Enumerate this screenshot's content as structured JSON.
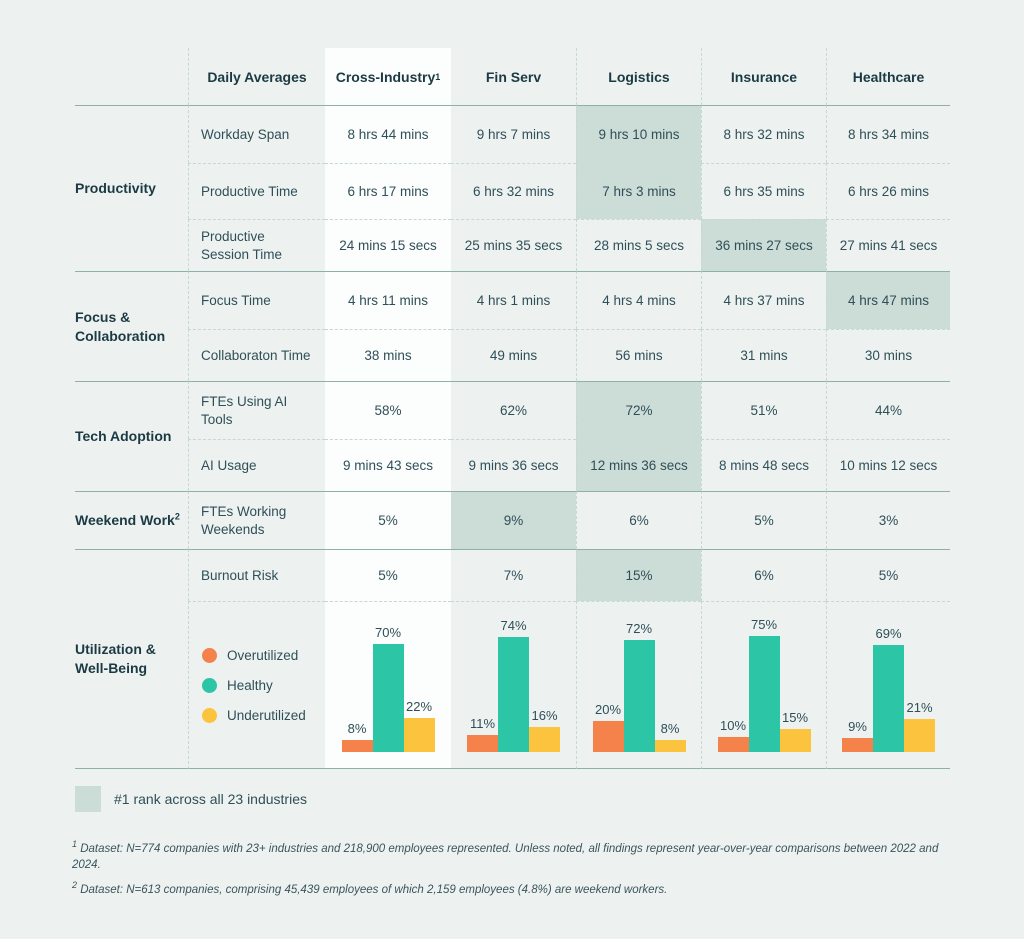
{
  "table": {
    "header": {
      "daily_averages_label": "Daily Averages",
      "columns": [
        {
          "label": "Cross-Industry",
          "superscript": "1"
        },
        {
          "label": "Fin Serv"
        },
        {
          "label": "Logistics"
        },
        {
          "label": "Insurance"
        },
        {
          "label": "Healthcare"
        }
      ]
    },
    "sections": [
      {
        "label": "Productivity",
        "rows": [
          {
            "label": "Workday Span",
            "values": [
              "8 hrs 44 mins",
              "9 hrs 7 mins",
              "9 hrs 10 mins",
              "8 hrs 32 mins",
              "8 hrs 34 mins"
            ]
          },
          {
            "label": "Productive Time",
            "values": [
              "6 hrs 17 mins",
              "6 hrs 32 mins",
              "7 hrs 3 mins",
              "6 hrs 35 mins",
              "6 hrs 26 mins"
            ]
          },
          {
            "label": "Productive Session Time",
            "values": [
              "24 mins 15 secs",
              "25 mins 35 secs",
              "28 mins 5 secs",
              "36 mins 27 secs",
              "27 mins 41 secs"
            ]
          }
        ]
      },
      {
        "label": "Focus & Collaboration",
        "rows": [
          {
            "label": "Focus Time",
            "values": [
              "4 hrs 11 mins",
              "4 hrs 1 mins",
              "4 hrs 4 mins",
              "4 hrs 37 mins",
              "4 hrs 47 mins"
            ]
          },
          {
            "label": "Collaboraton Time",
            "values": [
              "38 mins",
              "49 mins",
              "56 mins",
              "31 mins",
              "30 mins"
            ]
          }
        ]
      },
      {
        "label": "Tech Adoption",
        "rows": [
          {
            "label": "FTEs Using AI Tools",
            "values": [
              "58%",
              "62%",
              "72%",
              "51%",
              "44%"
            ]
          },
          {
            "label": "AI Usage",
            "values": [
              "9 mins 43 secs",
              "9 mins 36 secs",
              "12 mins 36 secs",
              "8 mins 48 secs",
              "10 mins 12 secs"
            ]
          }
        ]
      },
      {
        "label": "Weekend Work",
        "superscript": "2",
        "rows": [
          {
            "label": "FTEs Working Weekends",
            "values": [
              "5%",
              "9%",
              "6%",
              "5%",
              "3%"
            ]
          }
        ]
      },
      {
        "label": "Utilization & Well-Being",
        "rows": [
          {
            "label": "Burnout Risk",
            "values": [
              "5%",
              "7%",
              "15%",
              "6%",
              "5%"
            ]
          }
        ]
      }
    ]
  },
  "chart_data": {
    "type": "bar",
    "categories": [
      "Cross-Industry",
      "Fin Serv",
      "Logistics",
      "Insurance",
      "Healthcare"
    ],
    "series": [
      {
        "name": "Overutilized",
        "color": "#F5824B",
        "values": [
          8,
          11,
          20,
          10,
          9
        ]
      },
      {
        "name": "Healthy",
        "color": "#2CC5A6",
        "values": [
          70,
          74,
          72,
          75,
          69
        ]
      },
      {
        "name": "Underutilized",
        "color": "#FCC33E",
        "values": [
          22,
          16,
          8,
          15,
          21
        ]
      }
    ],
    "value_suffix": "%",
    "ylim": [
      0,
      100
    ],
    "legend_position": "left",
    "grid": false
  },
  "rank_legend": {
    "label": "#1 rank across all 23 industries",
    "swatch_color": "#ccdcd6"
  },
  "footnotes": [
    {
      "marker": "1",
      "text": "Dataset: N=774 companies with 23+ industries and 218,900 employees represented. Unless noted, all findings represent year-over-year comparisons between 2022 and 2024."
    },
    {
      "marker": "2",
      "text": "Dataset: N=613 companies, comprising 45,439 employees of which 2,159 employees (4.8%) are weekend workers."
    }
  ],
  "colors": {
    "page_bg": "#edf2f0",
    "highlight_cell": "#ccdcd6",
    "cross_industry_column_bg": "#fcfdfd",
    "dark_text": "#1b3a43",
    "body_text": "#2f4f58",
    "solid_line": "#8fafab",
    "dashed_line": "#c6d8d2"
  }
}
